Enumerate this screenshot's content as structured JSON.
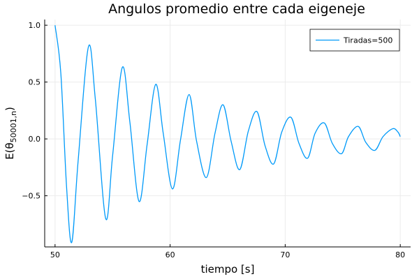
{
  "chart_data": {
    "type": "line",
    "title": "Angulos promedio entre cada eigeneje",
    "xlabel": "tiempo [s]",
    "ylabel": {
      "prefix": "E(θ",
      "subscript": "50001,n",
      "suffix": ")"
    },
    "xlim": [
      49.1,
      80.9
    ],
    "ylim": [
      -0.95,
      1.05
    ],
    "x_ticks": [
      50,
      60,
      70,
      80
    ],
    "x_tick_labels": [
      "50",
      "60",
      "70",
      "80"
    ],
    "y_ticks": [
      -0.5,
      0.0,
      0.5,
      1.0
    ],
    "y_tick_labels": [
      "−0.5",
      "0.0",
      "0.5",
      "1.0"
    ],
    "grid": true,
    "legend": "top-right",
    "colors": {
      "series": "#009AF9",
      "grid": "#ebebeb",
      "axis": "#000000"
    },
    "series": [
      {
        "name": "Tiradas=500",
        "x": [
          50.0,
          50.5,
          51.0,
          51.45,
          52.0,
          52.9,
          53.5,
          54.4,
          55.0,
          55.85,
          56.5,
          57.3,
          58.0,
          58.75,
          59.4,
          60.2,
          60.9,
          61.65,
          62.3,
          63.15,
          63.9,
          64.6,
          65.3,
          66.05,
          66.8,
          67.55,
          68.25,
          69.0,
          69.7,
          70.5,
          71.2,
          71.95,
          72.6,
          73.4,
          74.1,
          74.9,
          75.5,
          76.35,
          77.0,
          77.8,
          78.5,
          79.35,
          79.8,
          80.0
        ],
        "y": [
          1.0,
          0.58,
          -0.42,
          -0.91,
          -0.2,
          0.81,
          0.35,
          -0.7,
          -0.15,
          0.63,
          0.15,
          -0.55,
          -0.05,
          0.48,
          0.05,
          -0.44,
          -0.01,
          0.39,
          -0.02,
          -0.34,
          0.05,
          0.3,
          -0.02,
          -0.27,
          0.07,
          0.24,
          -0.06,
          -0.22,
          0.06,
          0.19,
          -0.04,
          -0.17,
          0.05,
          0.14,
          -0.04,
          -0.13,
          0.02,
          0.11,
          -0.03,
          -0.1,
          0.02,
          0.09,
          0.06,
          0.02
        ]
      }
    ]
  }
}
